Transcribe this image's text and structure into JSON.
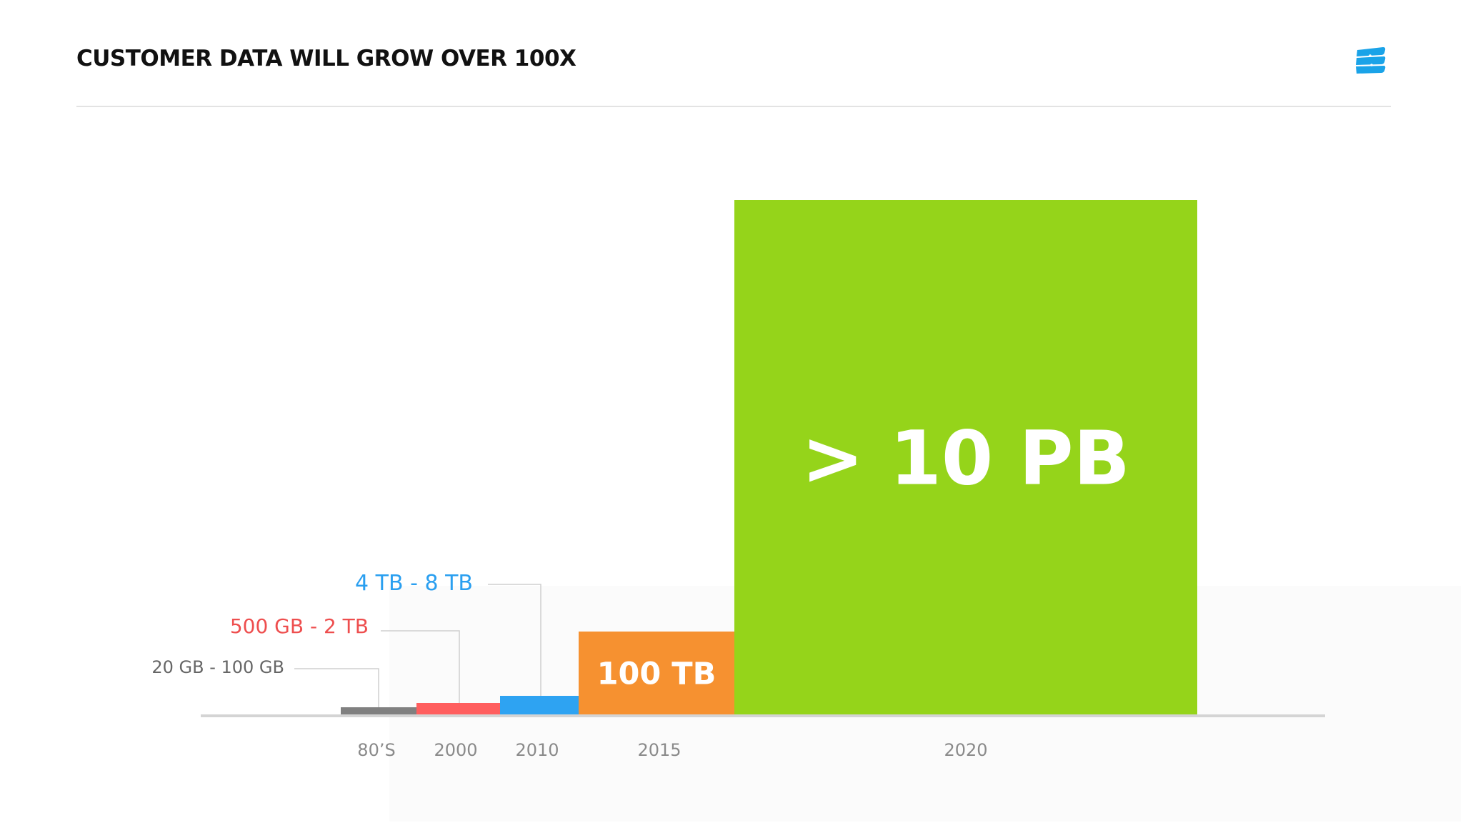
{
  "header": {
    "title": "CUSTOMER DATA WILL GROW OVER 100X",
    "logo_icon": "stacked-layers-icon",
    "logo_color": "#1aa3e8"
  },
  "chart_data": {
    "type": "bar",
    "title": "CUSTOMER DATA WILL GROW OVER 100X",
    "xlabel": "",
    "ylabel": "",
    "grid": false,
    "legend": "none",
    "categories": [
      "80’S",
      "2000",
      "2010",
      "2015",
      "2020"
    ],
    "values_tb": [
      0.1,
      2,
      8,
      100,
      10000
    ],
    "value_labels": [
      "20 GB - 100 GB",
      "500 GB - 2 TB",
      "4 TB - 8 TB",
      "100 TB",
      "> 10 PB"
    ],
    "label_placement": [
      "callout",
      "callout",
      "callout",
      "inside",
      "inside"
    ],
    "colors": [
      "#808080",
      "#ff5e5e",
      "#2ea3f2",
      "#f69130",
      "#95d41a"
    ],
    "label_colors": [
      "#666666",
      "#ee4e4e",
      "#2a9ff0",
      "#ffffff",
      "#ffffff"
    ],
    "scale": "non-linear (illustrative)"
  }
}
